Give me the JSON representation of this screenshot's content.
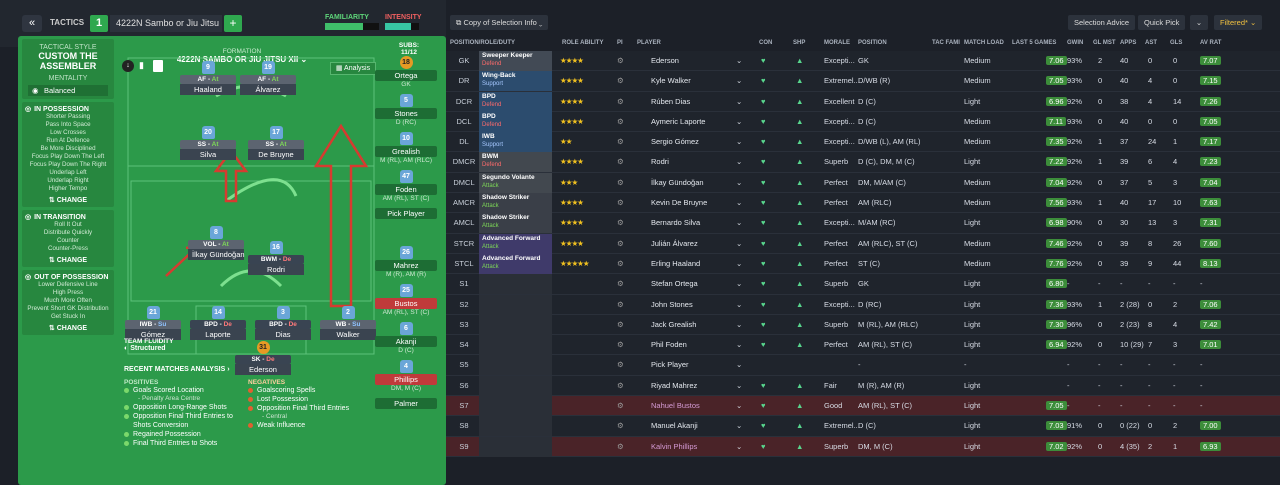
{
  "topbar": {
    "nav_icon": "double-chevron-left-icon",
    "tactics_label": "TACTICS",
    "tactic_number": "1",
    "formation_name": "4222N Sambo or Jiu Jitsu XII",
    "add_icon": "plus-icon",
    "familiarity_label": "FAMILIARITY",
    "intensity_label": "INTENSITY",
    "familiarity_fill": 0.7,
    "intensity_fill": 0.75
  },
  "tactical_style": {
    "label": "TACTICAL STYLE",
    "value": "CUSTOM THE ASSEMBLER",
    "mentality_label": "MENTALITY",
    "mentality_value": "Balanced"
  },
  "in_possession": {
    "title": "IN POSSESSION",
    "items": [
      "Shorter Passing",
      "Pass Into Space",
      "Low Crosses",
      "Run At Defence",
      "Be More Disciplined",
      "Focus Play Down The Left",
      "Focus Play Down The Right",
      "Underlap Left",
      "Underlap Right",
      "Higher Tempo"
    ],
    "change": "CHANGE"
  },
  "in_transition": {
    "title": "IN TRANSITION",
    "items": [
      "Roll It Out",
      "Distribute Quickly",
      "Counter",
      "Counter-Press"
    ],
    "change": "CHANGE"
  },
  "out_of_possession": {
    "title": "OUT OF POSSESSION",
    "items": [
      "Lower Defensive Line",
      "High Press",
      "Much More Often",
      "Prevent Short GK Distribution",
      "Get Stuck In"
    ],
    "change": "CHANGE"
  },
  "pitch": {
    "formation_label": "FORMATION",
    "formation_title": "4222N SAMBO OR JIU JITSU XII",
    "analysis_label": "Analysis",
    "subs_label": "SUBS:",
    "subs_count": "11/12",
    "team_fluidity_label": "TEAM FLUIDITY",
    "team_fluidity_value": "Structured",
    "players": [
      {
        "num": "9",
        "role": "AF",
        "duty": "At",
        "name": "Haaland"
      },
      {
        "num": "19",
        "role": "AF",
        "duty": "At",
        "name": "Álvarez"
      },
      {
        "num": "20",
        "role": "SS",
        "duty": "At",
        "name": "Silva"
      },
      {
        "num": "17",
        "role": "SS",
        "duty": "At",
        "name": "De Bruyne"
      },
      {
        "num": "8",
        "role": "VOL",
        "duty": "At",
        "name": "İlkay Gündoğan"
      },
      {
        "num": "16",
        "role": "BWM",
        "duty": "De",
        "name": "Rodri"
      },
      {
        "num": "21",
        "role": "IWB",
        "duty": "Su",
        "name": "Gómez"
      },
      {
        "num": "14",
        "role": "BPD",
        "duty": "De",
        "name": "Laporte"
      },
      {
        "num": "3",
        "role": "BPD",
        "duty": "De",
        "name": "Dias"
      },
      {
        "num": "2",
        "role": "WB",
        "duty": "Su",
        "name": "Walker"
      },
      {
        "num": "31",
        "role": "SK",
        "duty": "De",
        "name": "Ederson"
      }
    ]
  },
  "subs": [
    {
      "num": "18",
      "name": "Ortega",
      "pos": "GK",
      "gk": true
    },
    {
      "num": "5",
      "name": "Stones",
      "pos": "D (RC)"
    },
    {
      "num": "10",
      "name": "Grealish",
      "pos": "M (RL), AM (RLC)"
    },
    {
      "num": "47",
      "name": "Foden",
      "pos": "AM (RL), ST (C)"
    },
    {
      "num": "",
      "name": "Pick Player",
      "pos": ""
    },
    {
      "num": "26",
      "name": "Mahrez",
      "pos": "M (R), AM (R)"
    },
    {
      "num": "25",
      "name": "Bustos",
      "pos": "AM (RL), ST (C)",
      "red": true
    },
    {
      "num": "6",
      "name": "Akanji",
      "pos": "D (C)"
    },
    {
      "num": "4",
      "name": "Phillips",
      "pos": "DM, M (C)",
      "red": true
    },
    {
      "num": "",
      "name": "Palmer",
      "pos": ""
    }
  ],
  "recent": {
    "title": "RECENT MATCHES ANALYSIS",
    "positives_label": "POSITIVES",
    "negatives_label": "NEGATIVES",
    "positives": [
      "Goals Scored Location",
      "- Penalty Area Centre",
      "Opposition Long-Range Shots",
      "Opposition Final Third Entries to Shots Conversion",
      "Regained Possession",
      "Final Third Entries to Shots"
    ],
    "negatives": [
      "Goalscoring Spells",
      "Lost Possession",
      "Opposition Final Third Entries",
      "- Central",
      "Weak Influence"
    ]
  },
  "right_toolbar": {
    "copy_label": "Copy of Selection Info",
    "selection_advice": "Selection Advice",
    "quick_pick": "Quick Pick",
    "filtered": "Filtered*"
  },
  "columns": [
    "POSITION/ROLE/DUTY",
    "ROLE ABILITY",
    "PI",
    "PLAYER",
    "CON",
    "SHP",
    "MORALE",
    "POSITION",
    "TAC FAMI",
    "MATCH LOAD",
    "LAST 5 GAMES",
    "GWIN",
    "GL MST",
    "APPS",
    "AST",
    "GLS",
    "AV RAT"
  ],
  "rows": [
    {
      "pos": "GK",
      "role": "Sweeper Keeper",
      "duty": "Defend",
      "stars": "★★★★",
      "player": "Ederson",
      "morale": "Excepti...",
      "position": "GK",
      "load": "Medium",
      "rating": "7.06",
      "gwin": "93%",
      "glmst": "2",
      "apps": "40",
      "ast": "0",
      "gls": "0",
      "avrat": "7.07",
      "tint": "gk"
    },
    {
      "pos": "DR",
      "role": "Wing-Back",
      "duty": "Support",
      "stars": "★★★★",
      "player": "Kyle Walker",
      "morale": "Extremel...",
      "position": "D/WB (R)",
      "load": "Medium",
      "rating": "7.05",
      "gwin": "93%",
      "glmst": "0",
      "apps": "40",
      "ast": "4",
      "gls": "0",
      "avrat": "7.15",
      "tint": "def"
    },
    {
      "pos": "DCR",
      "role": "BPD",
      "duty": "Defend",
      "stars": "★★★★",
      "player": "Rúben Dias",
      "morale": "Excellent",
      "position": "D (C)",
      "load": "Light",
      "rating": "6.96",
      "gwin": "92%",
      "glmst": "0",
      "apps": "38",
      "ast": "4",
      "gls": "14",
      "avrat": "7.26",
      "tint": "def"
    },
    {
      "pos": "DCL",
      "role": "BPD",
      "duty": "Defend",
      "stars": "★★★★",
      "player": "Aymeric Laporte",
      "morale": "Excepti...",
      "position": "D (C)",
      "load": "Medium",
      "rating": "7.11",
      "gwin": "93%",
      "glmst": "0",
      "apps": "40",
      "ast": "0",
      "gls": "0",
      "avrat": "7.05",
      "tint": "def"
    },
    {
      "pos": "DL",
      "role": "IWB",
      "duty": "Support",
      "stars": "★★",
      "player": "Sergio Gómez",
      "morale": "Excepti...",
      "position": "D/WB (L), AM (RL)",
      "load": "Medium",
      "rating": "7.35",
      "gwin": "92%",
      "glmst": "1",
      "apps": "37",
      "ast": "24",
      "gls": "1",
      "avrat": "7.17",
      "tint": "def"
    },
    {
      "pos": "DMCR",
      "role": "BWM",
      "duty": "Defend",
      "stars": "★★★★",
      "player": "Rodri",
      "morale": "Superb",
      "position": "D (C), DM, M (C)",
      "load": "Light",
      "rating": "7.22",
      "gwin": "92%",
      "glmst": "1",
      "apps": "39",
      "ast": "6",
      "gls": "4",
      "avrat": "7.23",
      "tint": "mid"
    },
    {
      "pos": "DMCL",
      "role": "Segundo Volante",
      "duty": "Attack",
      "stars": "★★★",
      "player": "İlkay Gündoğan",
      "morale": "Perfect",
      "position": "DM, M/AM (C)",
      "load": "Medium",
      "rating": "7.04",
      "gwin": "92%",
      "glmst": "0",
      "apps": "37",
      "ast": "5",
      "gls": "3",
      "avrat": "7.04",
      "tint": "mid"
    },
    {
      "pos": "AMCR",
      "role": "Shadow Striker",
      "duty": "Attack",
      "stars": "★★★★",
      "player": "Kevin De Bruyne",
      "morale": "Perfect",
      "position": "AM (RLC)",
      "load": "Medium",
      "rating": "7.56",
      "gwin": "93%",
      "glmst": "1",
      "apps": "40",
      "ast": "17",
      "gls": "10",
      "avrat": "7.63",
      "tint": "amc"
    },
    {
      "pos": "AMCL",
      "role": "Shadow Striker",
      "duty": "Attack",
      "stars": "★★★★",
      "player": "Bernardo Silva",
      "morale": "Excepti...",
      "position": "M/AM (RC)",
      "load": "Light",
      "rating": "6.98",
      "gwin": "90%",
      "glmst": "0",
      "apps": "30",
      "ast": "13",
      "gls": "3",
      "avrat": "7.31",
      "tint": "amc"
    },
    {
      "pos": "STCR",
      "role": "Advanced Forward",
      "duty": "Attack",
      "stars": "★★★★",
      "player": "Julián Álvarez",
      "morale": "Perfect",
      "position": "AM (RLC), ST (C)",
      "load": "Medium",
      "rating": "7.46",
      "gwin": "92%",
      "glmst": "0",
      "apps": "39",
      "ast": "8",
      "gls": "26",
      "avrat": "7.60",
      "tint": "st"
    },
    {
      "pos": "STCL",
      "role": "Advanced Forward",
      "duty": "Attack",
      "stars": "★★★★★",
      "player": "Erling Haaland",
      "morale": "Perfect",
      "position": "ST (C)",
      "load": "Medium",
      "rating": "7.76",
      "gwin": "92%",
      "glmst": "0",
      "apps": "39",
      "ast": "9",
      "gls": "44",
      "avrat": "8.13",
      "tint": "st"
    },
    {
      "pos": "S1",
      "role": "",
      "duty": "",
      "stars": "",
      "player": "Stefan Ortega",
      "morale": "Superb",
      "position": "GK",
      "load": "Light",
      "rating": "6.80",
      "gwin": "-",
      "glmst": "-",
      "apps": "-",
      "ast": "-",
      "gls": "-",
      "avrat": "-",
      "tint": "sub"
    },
    {
      "pos": "S2",
      "role": "",
      "duty": "",
      "stars": "",
      "player": "John Stones",
      "morale": "Excepti...",
      "position": "D (RC)",
      "load": "Light",
      "rating": "7.36",
      "gwin": "93%",
      "glmst": "1",
      "apps": "2 (28)",
      "ast": "0",
      "gls": "2",
      "avrat": "7.06",
      "tint": "sub"
    },
    {
      "pos": "S3",
      "role": "",
      "duty": "",
      "stars": "",
      "player": "Jack Grealish",
      "morale": "Superb",
      "position": "M (RL), AM (RLC)",
      "load": "Light",
      "rating": "7.30",
      "gwin": "96%",
      "glmst": "0",
      "apps": "2 (23)",
      "ast": "8",
      "gls": "4",
      "avrat": "7.42",
      "tint": "sub"
    },
    {
      "pos": "S4",
      "role": "",
      "duty": "",
      "stars": "",
      "player": "Phil Foden",
      "morale": "Perfect",
      "position": "AM (RL), ST (C)",
      "load": "Light",
      "rating": "6.94",
      "gwin": "92%",
      "glmst": "0",
      "apps": "10 (29)",
      "ast": "7",
      "gls": "3",
      "avrat": "7.01",
      "tint": "sub"
    },
    {
      "pos": "S5",
      "role": "",
      "duty": "",
      "stars": "",
      "player": "Pick Player",
      "morale": "",
      "position": "-",
      "load": "-",
      "rating": "",
      "gwin": "-",
      "glmst": "-",
      "apps": "-",
      "ast": "-",
      "gls": "-",
      "avrat": "-",
      "tint": "sub"
    },
    {
      "pos": "S6",
      "role": "",
      "duty": "",
      "stars": "",
      "player": "Riyad Mahrez",
      "morale": "Fair",
      "position": "M (R), AM (R)",
      "load": "Light",
      "rating": "",
      "gwin": "-",
      "glmst": "-",
      "apps": "-",
      "ast": "-",
      "gls": "-",
      "avrat": "-",
      "tint": "sub"
    },
    {
      "pos": "S7",
      "role": "",
      "duty": "",
      "stars": "",
      "player": "Nahuel Bustos",
      "morale": "Good",
      "position": "AM (RL), ST (C)",
      "load": "Light",
      "rating": "7.05",
      "gwin": "-",
      "glmst": "-",
      "apps": "-",
      "ast": "-",
      "gls": "-",
      "avrat": "-",
      "tint": "sub",
      "red": true
    },
    {
      "pos": "S8",
      "role": "",
      "duty": "",
      "stars": "",
      "player": "Manuel Akanji",
      "morale": "Extremel...",
      "position": "D (C)",
      "load": "Light",
      "rating": "7.03",
      "gwin": "91%",
      "glmst": "0",
      "apps": "0 (22)",
      "ast": "0",
      "gls": "2",
      "avrat": "7.00",
      "tint": "sub"
    },
    {
      "pos": "S9",
      "role": "",
      "duty": "",
      "stars": "",
      "player": "Kalvin Phillips",
      "morale": "Superb",
      "position": "DM, M (C)",
      "load": "Light",
      "rating": "7.02",
      "gwin": "92%",
      "glmst": "0",
      "apps": "4 (35)",
      "ast": "2",
      "gls": "1",
      "avrat": "6.93",
      "tint": "sub",
      "red": true
    }
  ]
}
